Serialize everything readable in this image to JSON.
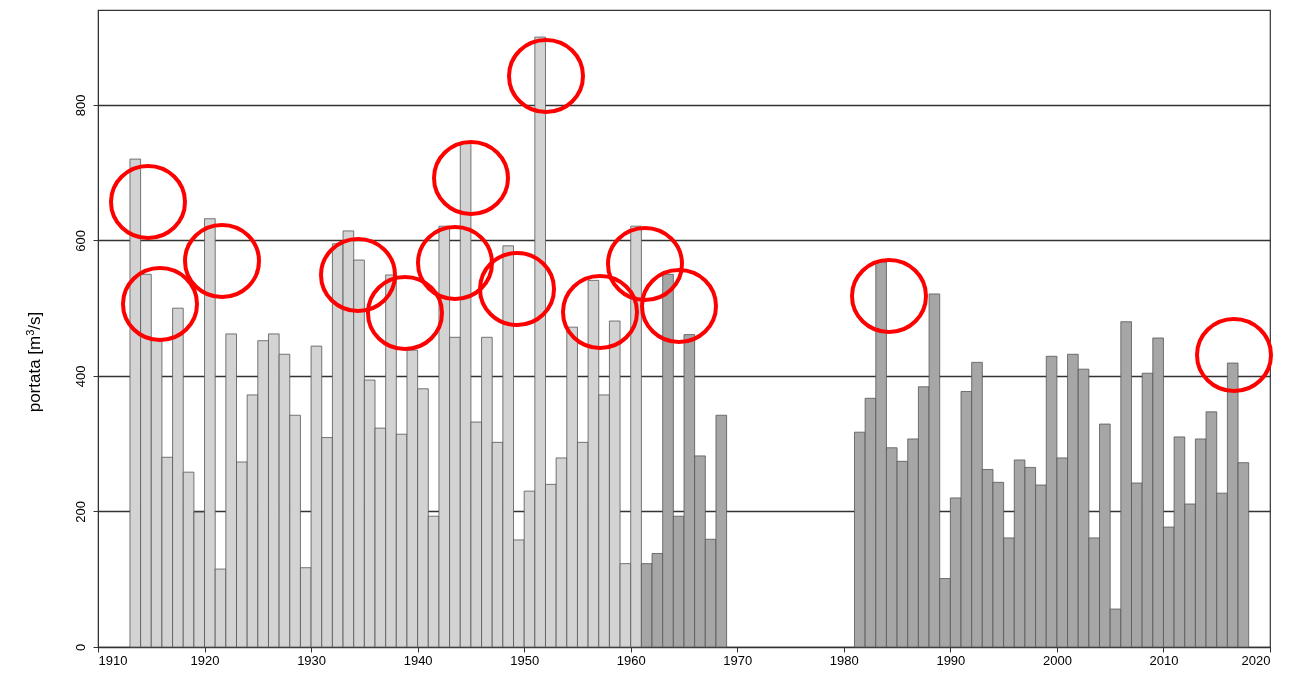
{
  "chart_data": {
    "type": "bar",
    "ylabel": "portata  [m$^{3}$/s]",
    "xlim": [
      1910,
      2020
    ],
    "xticks": [
      1910,
      1920,
      1930,
      1940,
      1950,
      1960,
      1970,
      1980,
      1990,
      2000,
      2010,
      2020
    ],
    "ylim": [
      0,
      940
    ],
    "yticks": [
      0,
      200,
      400,
      600,
      800
    ],
    "grid": "y",
    "series": [
      {
        "color": "#d3d3d3",
        "x": [
          1913,
          1914,
          1915,
          1916,
          1917,
          1918,
          1919,
          1920,
          1921,
          1922,
          1923,
          1924,
          1925,
          1926,
          1927,
          1928,
          1929,
          1930,
          1931,
          1932,
          1933,
          1934,
          1935,
          1936,
          1937,
          1938,
          1939,
          1940,
          1941,
          1942,
          1943,
          1944,
          1945,
          1946,
          1947,
          1948,
          1949,
          1950,
          1951,
          1952,
          1953,
          1954,
          1955,
          1956,
          1957,
          1958,
          1959,
          1960
        ],
        "values": [
          720,
          550,
          455,
          280,
          500,
          258,
          199,
          632,
          115,
          462,
          273,
          372,
          452,
          462,
          432,
          342,
          117,
          444,
          309,
          595,
          614,
          571,
          394,
          323,
          549,
          314,
          438,
          381,
          193,
          621,
          457,
          745,
          332,
          457,
          302,
          592,
          158,
          230,
          900,
          240,
          279,
          472,
          302,
          541,
          372,
          481,
          123,
          621
        ]
      },
      {
        "color": "#a6a6a6",
        "x": [
          1961,
          1962,
          1963,
          1964,
          1965,
          1966,
          1967,
          1968,
          1981,
          1982,
          1983,
          1984,
          1985,
          1986,
          1987,
          1988,
          1989,
          1990,
          1991,
          1992,
          1993,
          1994,
          1995,
          1996,
          1997,
          1998,
          1999,
          2000,
          2001,
          2002,
          2003,
          2004,
          2005,
          2006,
          2007,
          2008,
          2009,
          2010,
          2011,
          2012,
          2013,
          2014,
          2015,
          2016,
          2017
        ],
        "values": [
          123,
          138,
          550,
          193,
          461,
          282,
          159,
          342,
          317,
          367,
          568,
          294,
          274,
          307,
          384,
          521,
          101,
          220,
          377,
          420,
          262,
          243,
          161,
          276,
          265,
          239,
          429,
          279,
          432,
          410,
          161,
          329,
          56,
          480,
          242,
          404,
          456,
          177,
          310,
          211,
          307,
          347,
          227,
          419,
          272
        ]
      }
    ]
  }
}
